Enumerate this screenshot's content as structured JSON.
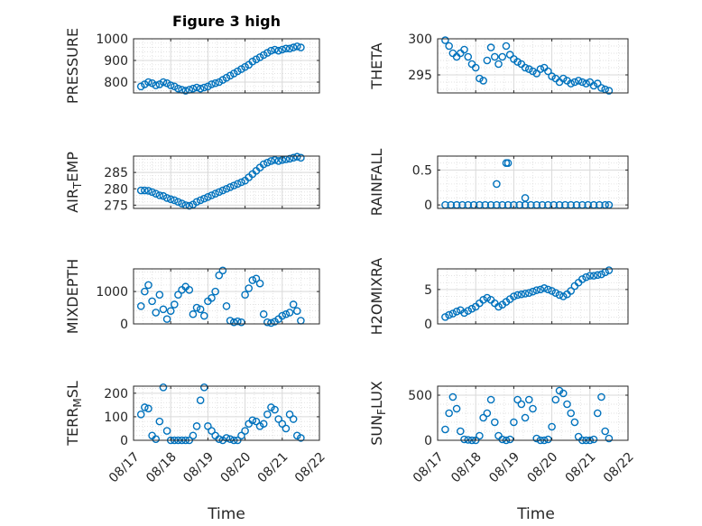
{
  "figure": {
    "title": "Figure 3 high",
    "xlabel": "Time",
    "x_tick_labels": [
      "08/17",
      "08/18",
      "08/19",
      "08/20",
      "08/21",
      "08/22"
    ],
    "marker_color": "#0072BD",
    "grid_color": "#d9d9d9",
    "axis_color": "#262626"
  },
  "chart_data": [
    {
      "type": "scatter",
      "ylabel_parts": [
        "PRESSURE"
      ],
      "ylim": [
        750,
        1000
      ],
      "yticks": [
        800,
        900,
        1000
      ],
      "x": [
        0.2,
        0.3,
        0.4,
        0.5,
        0.6,
        0.7,
        0.8,
        0.9,
        1.0,
        1.1,
        1.2,
        1.3,
        1.4,
        1.5,
        1.6,
        1.7,
        1.8,
        1.9,
        2.0,
        2.1,
        2.2,
        2.3,
        2.4,
        2.5,
        2.6,
        2.7,
        2.8,
        2.9,
        3.0,
        3.1,
        3.2,
        3.3,
        3.4,
        3.5,
        3.6,
        3.7,
        3.8,
        3.9,
        4.0,
        4.1,
        4.2,
        4.3,
        4.4,
        4.5
      ],
      "y": [
        780,
        790,
        800,
        795,
        785,
        790,
        800,
        795,
        785,
        780,
        770,
        765,
        760,
        765,
        770,
        775,
        770,
        775,
        780,
        790,
        795,
        800,
        810,
        820,
        830,
        840,
        850,
        860,
        870,
        880,
        895,
        905,
        915,
        925,
        935,
        945,
        950,
        945,
        950,
        955,
        955,
        960,
        965,
        960
      ]
    },
    {
      "type": "scatter",
      "ylabel_parts": [
        "THETA"
      ],
      "ylim": [
        292.5,
        300
      ],
      "yticks": [
        295,
        300
      ],
      "x": [
        0.2,
        0.3,
        0.4,
        0.5,
        0.6,
        0.7,
        0.8,
        0.9,
        1.0,
        1.1,
        1.2,
        1.3,
        1.4,
        1.5,
        1.6,
        1.7,
        1.8,
        1.9,
        2.0,
        2.1,
        2.2,
        2.3,
        2.4,
        2.5,
        2.6,
        2.7,
        2.8,
        2.9,
        3.0,
        3.1,
        3.2,
        3.3,
        3.4,
        3.5,
        3.6,
        3.7,
        3.8,
        3.9,
        4.0,
        4.1,
        4.2,
        4.3,
        4.4,
        4.5
      ],
      "y": [
        299.8,
        299.0,
        298.0,
        297.5,
        298.0,
        298.5,
        297.5,
        296.5,
        296.0,
        294.5,
        294.2,
        297.0,
        298.8,
        297.5,
        296.5,
        297.5,
        299.0,
        297.8,
        297.2,
        296.8,
        296.5,
        296.0,
        295.8,
        295.5,
        295.2,
        295.8,
        296.0,
        295.5,
        294.8,
        294.5,
        294.0,
        294.5,
        294.2,
        293.8,
        294.0,
        294.2,
        294.0,
        293.8,
        294.0,
        293.5,
        293.8,
        293.2,
        293.0,
        292.8
      ]
    },
    {
      "type": "scatter",
      "ylabel_parts": [
        "AIR",
        "T",
        "EMP"
      ],
      "ylim": [
        274,
        290
      ],
      "yticks": [
        275,
        280,
        285
      ],
      "x": [
        0.2,
        0.3,
        0.4,
        0.5,
        0.6,
        0.7,
        0.8,
        0.9,
        1.0,
        1.1,
        1.2,
        1.3,
        1.4,
        1.5,
        1.6,
        1.7,
        1.8,
        1.9,
        2.0,
        2.1,
        2.2,
        2.3,
        2.4,
        2.5,
        2.6,
        2.7,
        2.8,
        2.9,
        3.0,
        3.1,
        3.2,
        3.3,
        3.4,
        3.5,
        3.6,
        3.7,
        3.8,
        3.9,
        4.0,
        4.1,
        4.2,
        4.3,
        4.4,
        4.5
      ],
      "y": [
        279.5,
        279.5,
        279.4,
        279.0,
        278.5,
        278.0,
        277.8,
        277.2,
        276.8,
        276.5,
        276.0,
        275.5,
        275.0,
        274.8,
        275.2,
        276.0,
        276.5,
        277.0,
        277.5,
        278.0,
        278.5,
        279.0,
        279.5,
        280.0,
        280.5,
        281.0,
        281.5,
        282.0,
        282.5,
        283.5,
        284.5,
        285.5,
        286.5,
        287.5,
        288.0,
        288.5,
        288.8,
        288.5,
        288.8,
        289.0,
        289.2,
        289.5,
        289.8,
        289.5
      ]
    },
    {
      "type": "scatter",
      "ylabel_parts": [
        "RAINFALL"
      ],
      "ylim": [
        -0.05,
        0.7
      ],
      "yticks": [
        0,
        0.5
      ],
      "x": [
        0.2,
        0.35,
        0.5,
        0.65,
        0.8,
        0.95,
        1.1,
        1.25,
        1.4,
        1.55,
        1.7,
        1.85,
        2.0,
        2.15,
        2.3,
        2.45,
        2.6,
        2.75,
        2.9,
        3.05,
        3.2,
        3.35,
        3.5,
        3.65,
        3.8,
        3.95,
        4.1,
        4.25,
        4.4,
        4.5,
        1.55,
        1.8,
        1.85,
        2.3
      ],
      "y": [
        0,
        0,
        0,
        0,
        0,
        0,
        0,
        0,
        0,
        0,
        0,
        0,
        0,
        0,
        0,
        0,
        0,
        0,
        0,
        0,
        0,
        0,
        0,
        0,
        0,
        0,
        0,
        0,
        0,
        0,
        0.3,
        0.6,
        0.6,
        0.1
      ]
    },
    {
      "type": "scatter",
      "ylabel_parts": [
        "MIXDEPTH"
      ],
      "ylim": [
        0,
        1700
      ],
      "yticks": [
        0,
        1000
      ],
      "x": [
        0.2,
        0.3,
        0.4,
        0.5,
        0.6,
        0.7,
        0.8,
        0.9,
        1.0,
        1.1,
        1.2,
        1.3,
        1.4,
        1.5,
        1.6,
        1.7,
        1.8,
        1.9,
        2.0,
        2.1,
        2.2,
        2.3,
        2.4,
        2.5,
        2.6,
        2.7,
        2.8,
        2.9,
        3.0,
        3.1,
        3.2,
        3.3,
        3.4,
        3.5,
        3.6,
        3.7,
        3.8,
        3.9,
        4.0,
        4.1,
        4.2,
        4.3,
        4.4,
        4.5
      ],
      "y": [
        550,
        1000,
        1200,
        700,
        350,
        900,
        450,
        150,
        400,
        600,
        900,
        1050,
        1150,
        1050,
        300,
        500,
        450,
        250,
        700,
        800,
        1000,
        1500,
        1650,
        550,
        100,
        50,
        80,
        50,
        900,
        1100,
        1350,
        1400,
        1250,
        300,
        50,
        30,
        70,
        150,
        250,
        300,
        350,
        600,
        400,
        100
      ]
    },
    {
      "type": "scatter",
      "ylabel_parts": [
        "H2OMIXRA"
      ],
      "ylim": [
        0,
        8
      ],
      "yticks": [
        0,
        5
      ],
      "x": [
        0.2,
        0.3,
        0.4,
        0.5,
        0.6,
        0.7,
        0.8,
        0.9,
        1.0,
        1.1,
        1.2,
        1.3,
        1.4,
        1.5,
        1.6,
        1.7,
        1.8,
        1.9,
        2.0,
        2.1,
        2.2,
        2.3,
        2.4,
        2.5,
        2.6,
        2.7,
        2.8,
        2.9,
        3.0,
        3.1,
        3.2,
        3.3,
        3.4,
        3.5,
        3.6,
        3.7,
        3.8,
        3.9,
        4.0,
        4.1,
        4.2,
        4.3,
        4.4,
        4.5
      ],
      "y": [
        1.0,
        1.3,
        1.5,
        1.8,
        2.0,
        1.6,
        1.9,
        2.2,
        2.5,
        3.0,
        3.5,
        3.8,
        3.5,
        3.0,
        2.5,
        2.8,
        3.2,
        3.6,
        4.0,
        4.2,
        4.3,
        4.4,
        4.5,
        4.7,
        4.9,
        5.0,
        5.2,
        5.0,
        4.8,
        4.5,
        4.2,
        4.0,
        4.3,
        4.8,
        5.5,
        6.0,
        6.5,
        6.8,
        7.0,
        7.0,
        7.1,
        7.2,
        7.5,
        7.8
      ]
    },
    {
      "type": "scatter",
      "ylabel_parts": [
        "TERR",
        "M",
        "SL"
      ],
      "ylim": [
        0,
        230
      ],
      "yticks": [
        0,
        100,
        200
      ],
      "x": [
        0.2,
        0.3,
        0.4,
        0.5,
        0.6,
        0.7,
        0.8,
        0.9,
        1.0,
        1.1,
        1.2,
        1.3,
        1.4,
        1.5,
        1.6,
        1.7,
        1.8,
        1.9,
        2.0,
        2.1,
        2.2,
        2.3,
        2.4,
        2.5,
        2.6,
        2.7,
        2.8,
        2.9,
        3.0,
        3.1,
        3.2,
        3.3,
        3.4,
        3.5,
        3.6,
        3.7,
        3.8,
        3.9,
        4.0,
        4.1,
        4.2,
        4.3,
        4.4,
        4.5
      ],
      "y": [
        110,
        140,
        135,
        20,
        5,
        80,
        225,
        40,
        0,
        0,
        0,
        0,
        0,
        0,
        20,
        60,
        170,
        225,
        60,
        40,
        20,
        5,
        0,
        10,
        5,
        0,
        0,
        20,
        40,
        70,
        85,
        80,
        60,
        70,
        110,
        140,
        130,
        90,
        70,
        50,
        110,
        90,
        20,
        10
      ]
    },
    {
      "type": "scatter",
      "ylabel_parts": [
        "SUN",
        "F",
        "LUX"
      ],
      "ylim": [
        0,
        600
      ],
      "yticks": [
        0,
        500
      ],
      "x": [
        0.2,
        0.3,
        0.4,
        0.5,
        0.6,
        0.7,
        0.8,
        0.9,
        1.0,
        1.1,
        1.2,
        1.3,
        1.4,
        1.5,
        1.6,
        1.7,
        1.8,
        1.9,
        2.0,
        2.1,
        2.2,
        2.3,
        2.4,
        2.5,
        2.6,
        2.7,
        2.8,
        2.9,
        3.0,
        3.1,
        3.2,
        3.3,
        3.4,
        3.5,
        3.6,
        3.7,
        3.8,
        3.9,
        4.0,
        4.1,
        4.2,
        4.3,
        4.4,
        4.5
      ],
      "y": [
        120,
        300,
        480,
        350,
        100,
        10,
        5,
        0,
        0,
        50,
        250,
        300,
        450,
        200,
        50,
        10,
        0,
        10,
        200,
        450,
        400,
        250,
        450,
        350,
        20,
        0,
        0,
        10,
        150,
        450,
        550,
        520,
        400,
        300,
        200,
        40,
        0,
        0,
        0,
        10,
        300,
        480,
        100,
        20
      ]
    }
  ]
}
